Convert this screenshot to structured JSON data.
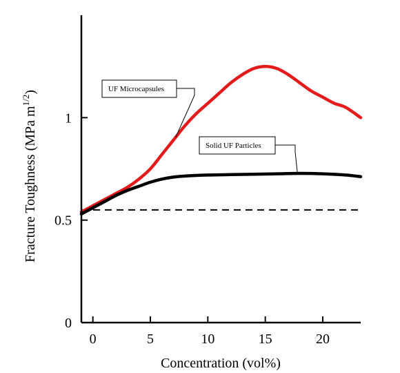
{
  "chart_data": {
    "type": "line",
    "title": "",
    "xlabel": "Concentration (vol%)",
    "ylabel": "Fracture Toughness (MPa m",
    "ylabel_sup": "1/2",
    "ylabel_close": ")",
    "xlim": [
      -1,
      23.3
    ],
    "ylim": [
      0,
      1.5
    ],
    "xticks": [
      0,
      5,
      10,
      15,
      20
    ],
    "yticks": [
      0,
      0.5,
      1
    ],
    "xtick_labels": [
      "0",
      "5",
      "10",
      "15",
      "20"
    ],
    "ytick_labels": [
      "0",
      "0.5",
      "1"
    ],
    "grid": false,
    "series": [
      {
        "name": "UF Microcapsules",
        "color": "#e41b1b",
        "x": [
          -1,
          0,
          1,
          2,
          3,
          4,
          5,
          6,
          7,
          8,
          9,
          10,
          11,
          12,
          13,
          14,
          15,
          16,
          17,
          18,
          19,
          20,
          21,
          22,
          23.3
        ],
        "y": [
          0.54,
          0.57,
          0.6,
          0.63,
          0.66,
          0.7,
          0.75,
          0.82,
          0.89,
          0.96,
          1.02,
          1.07,
          1.12,
          1.17,
          1.21,
          1.24,
          1.25,
          1.24,
          1.21,
          1.17,
          1.13,
          1.1,
          1.07,
          1.05,
          1.0
        ]
      },
      {
        "name": "Solid UF Particles",
        "color": "#000000",
        "x": [
          -1,
          0,
          1,
          2,
          3,
          4,
          5,
          6,
          7,
          8,
          10,
          12,
          14,
          16,
          18,
          20,
          22,
          23.3
        ],
        "y": [
          0.53,
          0.56,
          0.59,
          0.62,
          0.645,
          0.665,
          0.685,
          0.7,
          0.71,
          0.715,
          0.72,
          0.722,
          0.724,
          0.726,
          0.728,
          0.726,
          0.72,
          0.712
        ]
      }
    ],
    "reference_line": {
      "style": "dashed",
      "y": 0.55,
      "color": "#000000"
    },
    "annotations": [
      {
        "text": "UF Microcapsules",
        "series": "UF Microcapsules",
        "points_to_x": 7.2
      },
      {
        "text": "Solid UF Particles",
        "series": "Solid UF Particles",
        "points_to_x": 17.8
      }
    ]
  }
}
